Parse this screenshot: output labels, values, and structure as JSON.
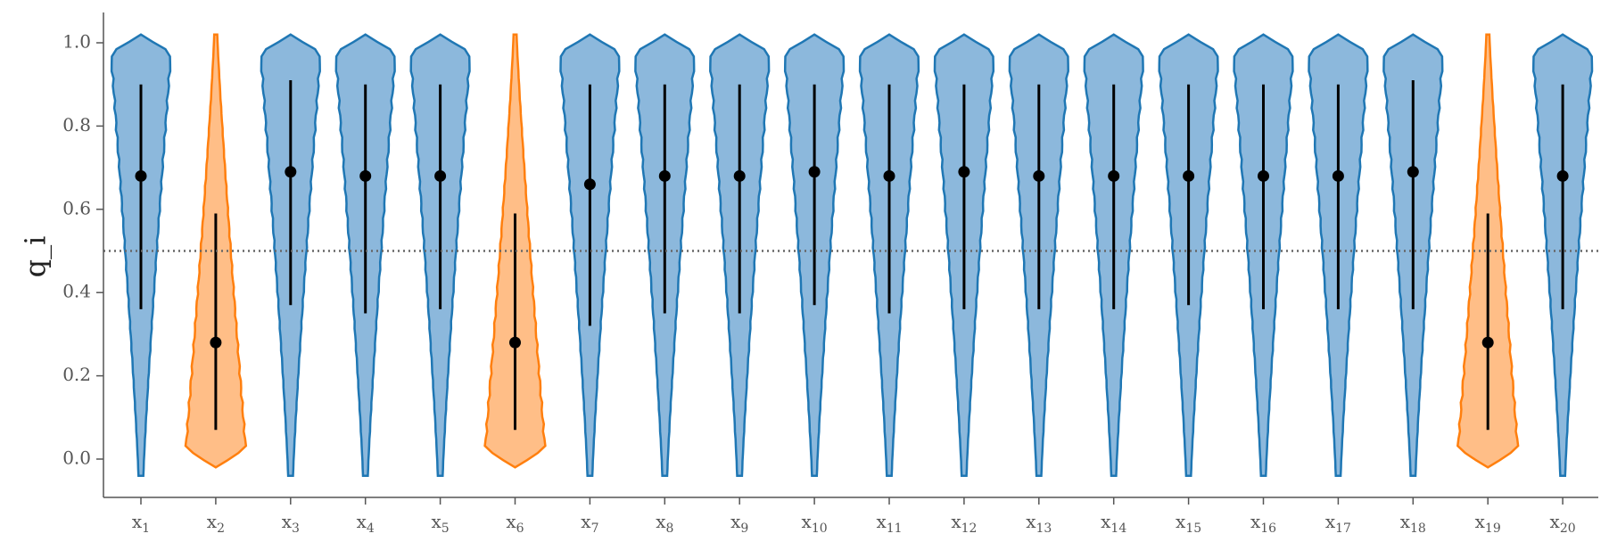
{
  "chart_data": {
    "type": "violin",
    "ylabel": "q_i",
    "ylim": [
      -0.09,
      1.07
    ],
    "yticks": [
      0.0,
      0.2,
      0.4,
      0.6,
      0.8,
      1.0
    ],
    "ytick_labels": [
      "0.0",
      "0.2",
      "0.4",
      "0.6",
      "0.8",
      "1.0"
    ],
    "reference_line": 0.5,
    "colors": {
      "high_fill": "#8cb8dc",
      "high_edge": "#1f77b4",
      "low_fill": "#ffbe87",
      "low_edge": "#ff7f0e",
      "marker": "#000000",
      "reference": "#666666"
    },
    "variables": [
      {
        "sub": "1",
        "group": "high",
        "median": 0.68,
        "lo": 0.36,
        "hi": 0.9,
        "min": -0.04,
        "max": 1.02
      },
      {
        "sub": "2",
        "group": "low",
        "median": 0.28,
        "lo": 0.07,
        "hi": 0.59,
        "min": -0.02,
        "max": 1.02
      },
      {
        "sub": "3",
        "group": "high",
        "median": 0.69,
        "lo": 0.37,
        "hi": 0.91,
        "min": -0.04,
        "max": 1.02
      },
      {
        "sub": "4",
        "group": "high",
        "median": 0.68,
        "lo": 0.35,
        "hi": 0.9,
        "min": -0.04,
        "max": 1.02
      },
      {
        "sub": "5",
        "group": "high",
        "median": 0.68,
        "lo": 0.36,
        "hi": 0.9,
        "min": -0.04,
        "max": 1.02
      },
      {
        "sub": "6",
        "group": "low",
        "median": 0.28,
        "lo": 0.07,
        "hi": 0.59,
        "min": -0.02,
        "max": 1.02
      },
      {
        "sub": "7",
        "group": "high",
        "median": 0.66,
        "lo": 0.32,
        "hi": 0.9,
        "min": -0.04,
        "max": 1.02
      },
      {
        "sub": "8",
        "group": "high",
        "median": 0.68,
        "lo": 0.35,
        "hi": 0.9,
        "min": -0.04,
        "max": 1.02
      },
      {
        "sub": "9",
        "group": "high",
        "median": 0.68,
        "lo": 0.35,
        "hi": 0.9,
        "min": -0.04,
        "max": 1.02
      },
      {
        "sub": "10",
        "group": "high",
        "median": 0.69,
        "lo": 0.37,
        "hi": 0.9,
        "min": -0.04,
        "max": 1.02
      },
      {
        "sub": "11",
        "group": "high",
        "median": 0.68,
        "lo": 0.35,
        "hi": 0.9,
        "min": -0.04,
        "max": 1.02
      },
      {
        "sub": "12",
        "group": "high",
        "median": 0.69,
        "lo": 0.36,
        "hi": 0.9,
        "min": -0.04,
        "max": 1.02
      },
      {
        "sub": "13",
        "group": "high",
        "median": 0.68,
        "lo": 0.36,
        "hi": 0.9,
        "min": -0.04,
        "max": 1.02
      },
      {
        "sub": "14",
        "group": "high",
        "median": 0.68,
        "lo": 0.36,
        "hi": 0.9,
        "min": -0.04,
        "max": 1.02
      },
      {
        "sub": "15",
        "group": "high",
        "median": 0.68,
        "lo": 0.37,
        "hi": 0.9,
        "min": -0.04,
        "max": 1.02
      },
      {
        "sub": "16",
        "group": "high",
        "median": 0.68,
        "lo": 0.36,
        "hi": 0.9,
        "min": -0.04,
        "max": 1.02
      },
      {
        "sub": "17",
        "group": "high",
        "median": 0.68,
        "lo": 0.36,
        "hi": 0.9,
        "min": -0.04,
        "max": 1.02
      },
      {
        "sub": "18",
        "group": "high",
        "median": 0.69,
        "lo": 0.36,
        "hi": 0.91,
        "min": -0.04,
        "max": 1.02
      },
      {
        "sub": "19",
        "group": "low",
        "median": 0.28,
        "lo": 0.07,
        "hi": 0.59,
        "min": -0.02,
        "max": 1.02
      },
      {
        "sub": "20",
        "group": "high",
        "median": 0.68,
        "lo": 0.36,
        "hi": 0.9,
        "min": -0.04,
        "max": 1.02
      }
    ]
  }
}
